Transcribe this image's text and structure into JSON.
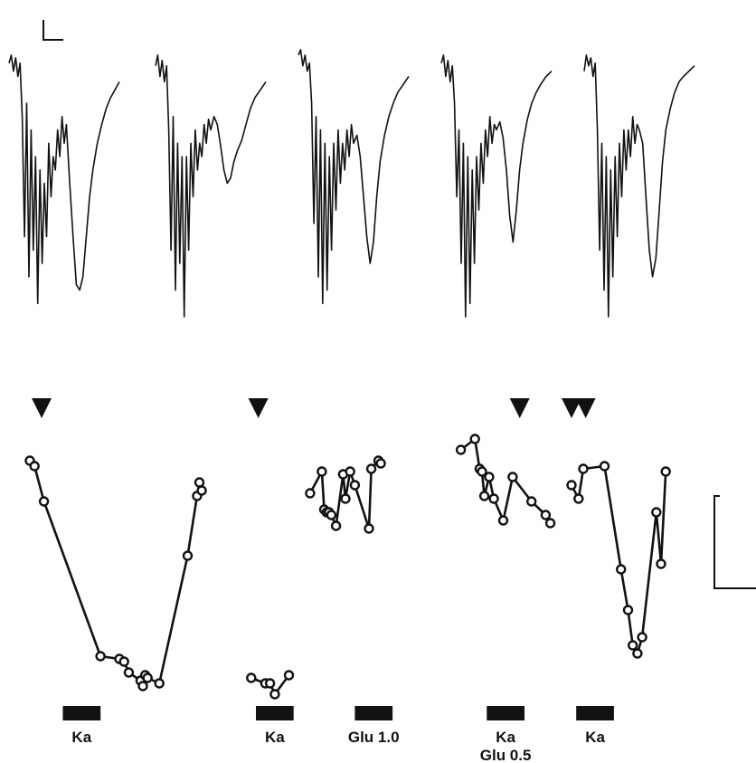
{
  "chart_data": [
    {
      "type": "line",
      "name": "current-traces",
      "traces": [
        {
          "x": [
            0,
            0.02,
            0.04,
            0.06,
            0.08,
            0.1,
            0.12,
            0.14,
            0.16,
            0.18,
            0.2,
            0.22,
            0.24,
            0.26,
            0.28,
            0.3,
            0.32,
            0.34,
            0.36,
            0.38,
            0.4,
            0.42,
            0.44,
            0.46,
            0.48,
            0.5,
            0.52,
            0.55,
            0.58,
            0.61,
            0.64,
            0.67,
            0.7,
            0.73,
            0.76,
            0.8,
            0.84,
            0.88,
            0.92,
            0.96,
            1.0
          ],
          "y": [
            0.05,
            0.02,
            0.08,
            0.03,
            0.1,
            0.05,
            0.25,
            0.7,
            0.2,
            0.85,
            0.3,
            0.75,
            0.4,
            0.95,
            0.45,
            0.8,
            0.5,
            0.7,
            0.35,
            0.55,
            0.4,
            0.45,
            0.3,
            0.4,
            0.25,
            0.35,
            0.28,
            0.5,
            0.7,
            0.88,
            0.9,
            0.85,
            0.7,
            0.55,
            0.45,
            0.35,
            0.28,
            0.22,
            0.18,
            0.15,
            0.12
          ]
        },
        {
          "x": [
            0,
            0.02,
            0.04,
            0.06,
            0.08,
            0.1,
            0.12,
            0.14,
            0.16,
            0.18,
            0.2,
            0.22,
            0.24,
            0.26,
            0.28,
            0.3,
            0.32,
            0.34,
            0.36,
            0.38,
            0.4,
            0.42,
            0.44,
            0.46,
            0.48,
            0.5,
            0.53,
            0.56,
            0.59,
            0.62,
            0.65,
            0.68,
            0.71,
            0.74,
            0.78,
            0.82,
            0.86,
            0.9,
            0.95,
            1.0
          ],
          "y": [
            0.06,
            0.02,
            0.1,
            0.04,
            0.12,
            0.06,
            0.3,
            0.75,
            0.25,
            0.9,
            0.35,
            0.8,
            0.4,
            1.0,
            0.4,
            0.75,
            0.35,
            0.55,
            0.3,
            0.45,
            0.35,
            0.4,
            0.28,
            0.35,
            0.26,
            0.3,
            0.25,
            0.28,
            0.36,
            0.45,
            0.5,
            0.48,
            0.42,
            0.38,
            0.34,
            0.28,
            0.22,
            0.18,
            0.15,
            0.12
          ]
        },
        {
          "x": [
            0,
            0.02,
            0.04,
            0.06,
            0.08,
            0.1,
            0.12,
            0.14,
            0.16,
            0.18,
            0.2,
            0.22,
            0.24,
            0.26,
            0.28,
            0.3,
            0.32,
            0.34,
            0.36,
            0.38,
            0.4,
            0.42,
            0.44,
            0.46,
            0.48,
            0.5,
            0.53,
            0.56,
            0.59,
            0.62,
            0.65,
            0.68,
            0.71,
            0.74,
            0.78,
            0.82,
            0.86,
            0.9,
            0.95,
            1.0
          ],
          "y": [
            0.02,
            0.0,
            0.06,
            0.02,
            0.08,
            0.05,
            0.2,
            0.65,
            0.25,
            0.85,
            0.3,
            0.95,
            0.35,
            0.9,
            0.4,
            0.75,
            0.35,
            0.6,
            0.3,
            0.5,
            0.35,
            0.45,
            0.3,
            0.4,
            0.28,
            0.35,
            0.32,
            0.4,
            0.55,
            0.7,
            0.8,
            0.72,
            0.55,
            0.42,
            0.32,
            0.25,
            0.2,
            0.16,
            0.13,
            0.1
          ]
        },
        {
          "x": [
            0,
            0.02,
            0.04,
            0.06,
            0.08,
            0.1,
            0.12,
            0.14,
            0.16,
            0.18,
            0.2,
            0.22,
            0.24,
            0.26,
            0.28,
            0.3,
            0.32,
            0.34,
            0.36,
            0.38,
            0.4,
            0.42,
            0.44,
            0.46,
            0.48,
            0.5,
            0.53,
            0.56,
            0.59,
            0.62,
            0.65,
            0.68,
            0.71,
            0.74,
            0.78,
            0.82,
            0.86,
            0.9,
            0.95,
            1.0
          ],
          "y": [
            0.05,
            0.02,
            0.1,
            0.04,
            0.12,
            0.06,
            0.2,
            0.55,
            0.3,
            0.8,
            0.35,
            1.0,
            0.4,
            0.95,
            0.45,
            0.8,
            0.4,
            0.6,
            0.35,
            0.5,
            0.3,
            0.4,
            0.25,
            0.35,
            0.28,
            0.3,
            0.27,
            0.33,
            0.45,
            0.62,
            0.72,
            0.6,
            0.45,
            0.35,
            0.26,
            0.2,
            0.16,
            0.13,
            0.1,
            0.08
          ]
        },
        {
          "x": [
            0,
            0.02,
            0.04,
            0.06,
            0.08,
            0.1,
            0.12,
            0.14,
            0.16,
            0.18,
            0.2,
            0.22,
            0.24,
            0.26,
            0.28,
            0.3,
            0.32,
            0.34,
            0.36,
            0.38,
            0.4,
            0.42,
            0.44,
            0.46,
            0.48,
            0.5,
            0.53,
            0.56,
            0.59,
            0.62,
            0.65,
            0.68,
            0.71,
            0.74,
            0.78,
            0.82,
            0.86,
            0.9,
            0.95,
            1.0
          ],
          "y": [
            0.08,
            0.02,
            0.06,
            0.03,
            0.1,
            0.05,
            0.3,
            0.75,
            0.35,
            0.9,
            0.4,
            1.0,
            0.45,
            0.85,
            0.4,
            0.7,
            0.35,
            0.55,
            0.3,
            0.45,
            0.3,
            0.4,
            0.25,
            0.35,
            0.28,
            0.3,
            0.35,
            0.55,
            0.75,
            0.85,
            0.78,
            0.6,
            0.42,
            0.3,
            0.22,
            0.16,
            0.12,
            0.1,
            0.08,
            0.06
          ]
        }
      ]
    },
    {
      "type": "scatter",
      "name": "response-time-course",
      "segments": [
        {
          "x": [
            0,
            2,
            6,
            30,
            38,
            40,
            42,
            47,
            48,
            49,
            50,
            55,
            67,
            71,
            72,
            73
          ],
          "y": [
            0.87,
            0.85,
            0.72,
            0.15,
            0.14,
            0.13,
            0.09,
            0.06,
            0.04,
            0.08,
            0.07,
            0.05,
            0.52,
            0.74,
            0.79,
            0.76
          ]
        },
        {
          "x": [
            94,
            100,
            102,
            104,
            110
          ],
          "y": [
            0.07,
            0.05,
            0.05,
            0.01,
            0.08
          ]
        },
        {
          "x": [
            119,
            124,
            125,
            126,
            127,
            128,
            130,
            133,
            134,
            136,
            138,
            144,
            145,
            148,
            149
          ],
          "y": [
            0.75,
            0.83,
            0.69,
            0.68,
            0.68,
            0.67,
            0.63,
            0.82,
            0.73,
            0.83,
            0.78,
            0.62,
            0.84,
            0.87,
            0.86
          ]
        },
        {
          "x": [
            183,
            189,
            191,
            192,
            193,
            195,
            197,
            201,
            205,
            213,
            219,
            221
          ],
          "y": [
            0.91,
            0.95,
            0.84,
            0.83,
            0.74,
            0.81,
            0.73,
            0.65,
            0.81,
            0.72,
            0.67,
            0.64
          ]
        },
        {
          "x": [
            230,
            233,
            235,
            244,
            251,
            254,
            256,
            258,
            260,
            266,
            268,
            270
          ],
          "y": [
            0.78,
            0.73,
            0.84,
            0.85,
            0.47,
            0.32,
            0.19,
            0.16,
            0.22,
            0.68,
            0.49,
            0.83
          ]
        }
      ],
      "stimuli": [
        {
          "label": "Ka",
          "start": 14,
          "end": 30
        },
        {
          "label": "Ka",
          "start": 96,
          "end": 112
        },
        {
          "label": "Glu 1.0",
          "start": 138,
          "end": 154
        },
        {
          "label": "Ka",
          "label2": "Glu 0.5",
          "start": 194,
          "end": 210
        },
        {
          "label": "Ka",
          "start": 232,
          "end": 248
        }
      ],
      "markers_x": [
        5,
        97,
        208,
        230,
        236
      ]
    }
  ]
}
